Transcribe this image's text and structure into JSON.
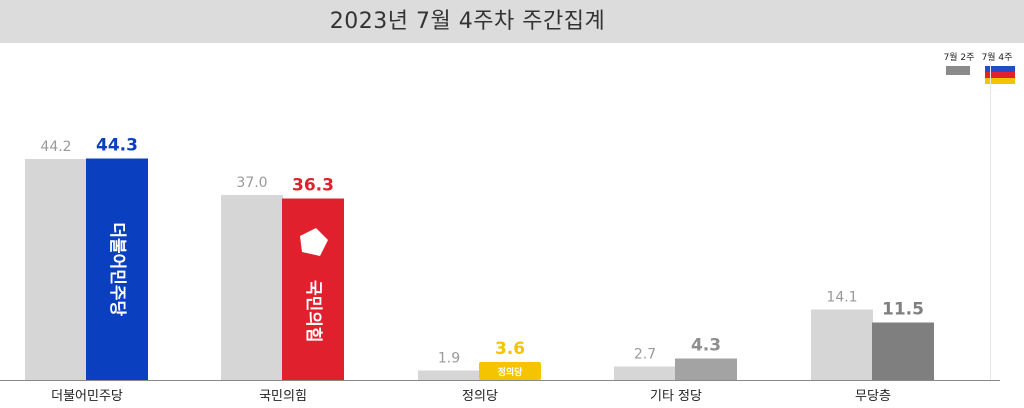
{
  "title": "2023년 7월 4주차 주간집계",
  "legend": {
    "previous": "7월 2주",
    "current": "7월 4주",
    "previous_color": "#8a8a8a",
    "flag_colors": [
      "#1f4fc7",
      "#e3202d",
      "#f5c400"
    ]
  },
  "chart_data": {
    "type": "bar",
    "title": "2023년 7월 4주차 주간집계",
    "xlabel": "",
    "ylabel": "",
    "ylim": [
      0,
      50
    ],
    "grid": false,
    "legend_position": "top-right",
    "categories": [
      "더불어민주당",
      "국민의힘",
      "정의당",
      "기타 정당",
      "무당층"
    ],
    "series": [
      {
        "name": "7월 2주",
        "values": [
          44.2,
          37.0,
          1.9,
          2.7,
          14.1
        ]
      },
      {
        "name": "7월 4주",
        "values": [
          44.3,
          36.3,
          3.6,
          4.3,
          11.5
        ]
      }
    ],
    "value_labels": {
      "previous": [
        "44.2",
        "37.0",
        "1.9",
        "2.7",
        "14.1"
      ],
      "current": [
        "44.3",
        "36.3",
        "3.6",
        "4.3",
        "11.5"
      ]
    },
    "colors": {
      "previous": [
        "#d6d6d6",
        "#d6d6d6",
        "#d6d6d6",
        "#d6d6d6",
        "#d6d6d6"
      ],
      "current": [
        "#0a3fbf",
        "#e0202d",
        "#f5c400",
        "#a3a3a3",
        "#7f7f7f"
      ],
      "current_label": [
        "#0a3fbf",
        "#e0202d",
        "#f5c400",
        "#8f8f8f",
        "#7f7f7f"
      ]
    },
    "bar_logo_labels": [
      "더불어민주당",
      "국민의힘",
      "정의당",
      "",
      ""
    ]
  }
}
